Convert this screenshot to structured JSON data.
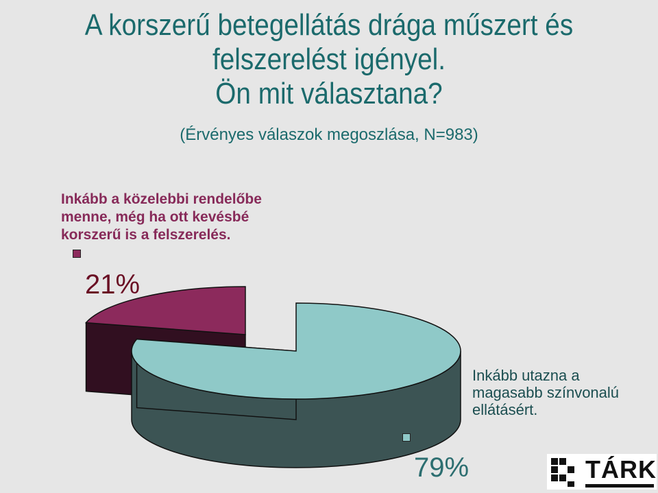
{
  "title_lines": [
    "A korszerű betegellátás drága műszert és",
    "felszerelést igényel.",
    "Ön mit választana?"
  ],
  "subtitle": "(Érvényes válaszok megoszlása, N=983)",
  "logo": {
    "text": "TÁRKI"
  },
  "colors": {
    "title": "#1b6a6c",
    "slice_a": "#8c2a5c",
    "slice_b": "#8fc9c8",
    "background": "#e6e6e6"
  },
  "chart_data": {
    "type": "pie",
    "style": "3d-exploded",
    "slices": [
      {
        "label": "Inkább a közelebbi rendelőbe menne, még ha ott kevésbé korszerű is a felszerelés.",
        "value": 21,
        "display": "21%",
        "color": "#8c2a5c"
      },
      {
        "label": "Inkább utazna a magasabb színvonalú ellátásért.",
        "value": 79,
        "display": "79%",
        "color": "#8fc9c8"
      }
    ]
  }
}
